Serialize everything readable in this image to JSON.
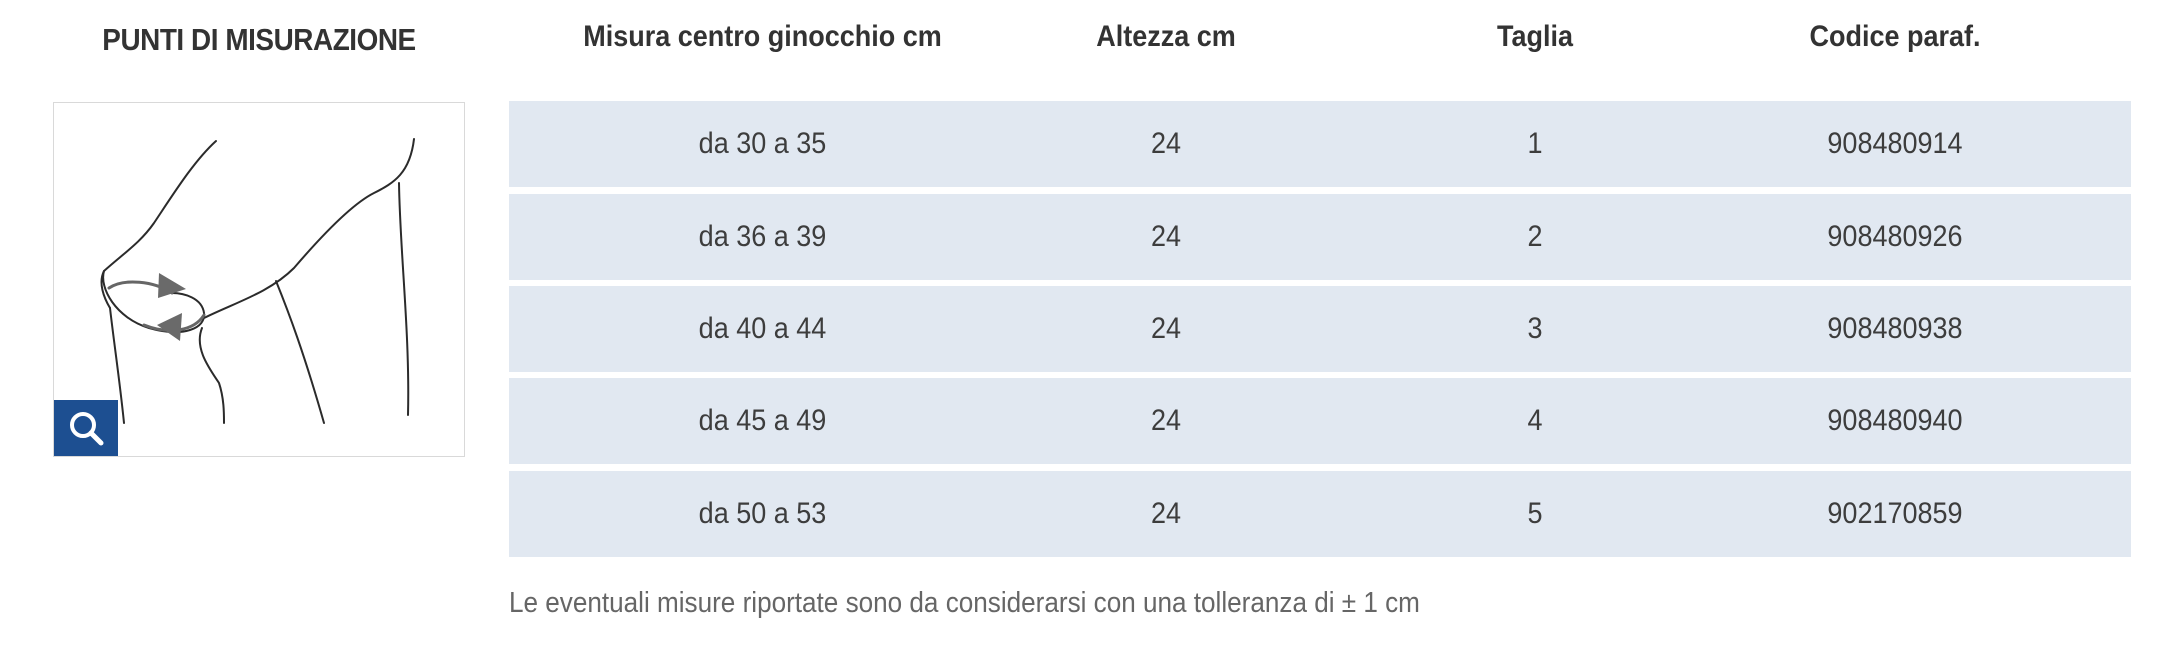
{
  "section": {
    "title": "PUNTI DI MISURAZIONE"
  },
  "image": {
    "zoom_icon": "search-icon",
    "illustration": "knee-measurement-diagram"
  },
  "table": {
    "headers": [
      "Misura centro ginocchio cm",
      "Altezza cm",
      "Taglia",
      "Codice paraf."
    ],
    "rows": [
      [
        "da 30 a 35",
        "24",
        "1",
        "908480914"
      ],
      [
        "da 36 a 39",
        "24",
        "2",
        "908480926"
      ],
      [
        "da 40 a 44",
        "24",
        "3",
        "908480938"
      ],
      [
        "da 45 a 49",
        "24",
        "4",
        "908480940"
      ],
      [
        "da 50 a 53",
        "24",
        "5",
        "902170859"
      ]
    ]
  },
  "note": "Le eventuali misure riportate sono da considerarsi con una tolleranza di ± 1 cm",
  "colors": {
    "row_bg": "#e1e8f1",
    "accent": "#1d4f91"
  }
}
